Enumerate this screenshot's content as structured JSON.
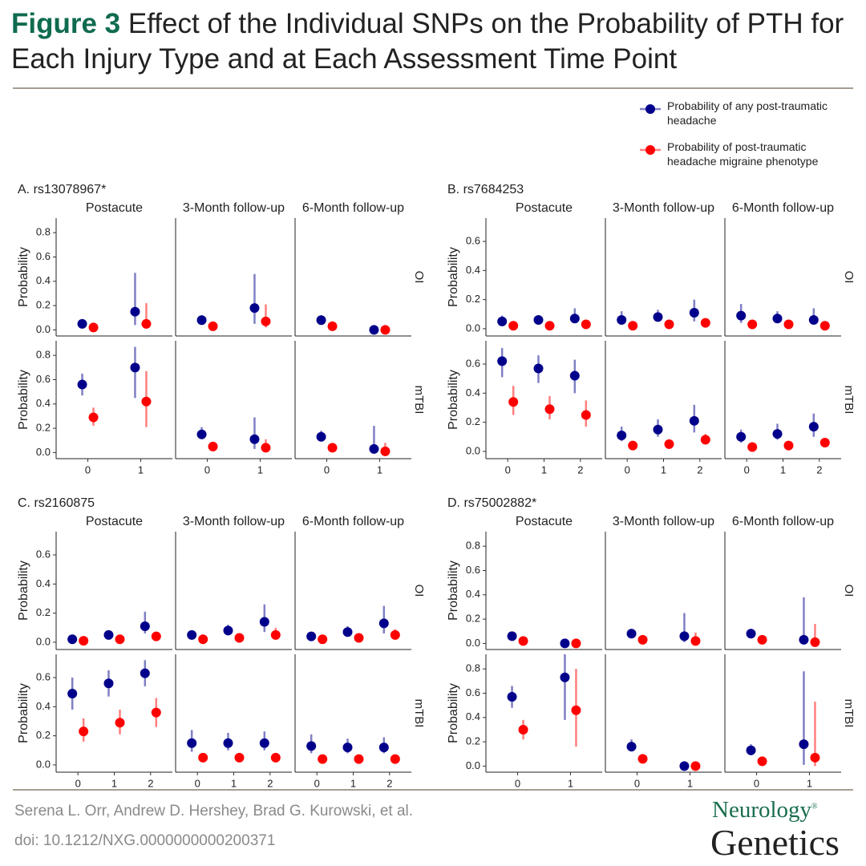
{
  "header": {
    "label": "Figure 3",
    "title": "Effect of the Individual SNPs on the Probability of PTH for Each Injury Type and at Each Assessment Time Point"
  },
  "chart_data": [
    {
      "type": "pointrange",
      "title": "A. rs13078967*",
      "columns": [
        "Postacute",
        "3-Month follow-up",
        "6-Month follow-up"
      ],
      "ylabel": "Probability",
      "categories": [
        "0",
        "1"
      ],
      "rows": [
        {
          "label": "OI",
          "ylim": [
            -0.05,
            0.92
          ],
          "yticks": [
            {
              "value": 0,
              "label": "0.0"
            },
            0.2,
            0.4,
            0.6,
            0.8
          ]
        },
        {
          "label": "mTBI",
          "ylim": [
            -0.05,
            0.92
          ],
          "yticks": [
            {
              "value": 0,
              "label": "0.0"
            },
            0.2,
            0.4,
            0.6,
            0.8
          ]
        }
      ],
      "series": [
        {
          "name": "Probability of any post-traumatic headache",
          "color": "#00008b",
          "values": [
            [
              0.05,
              0.15
            ],
            [
              0.08,
              0.18
            ],
            [
              0.08,
              0.0
            ],
            [
              0.56,
              0.7
            ],
            [
              0.15,
              0.11
            ],
            [
              0.13,
              0.03
            ]
          ],
          "low": [
            [
              0.03,
              0.04
            ],
            [
              0.05,
              0.05
            ],
            [
              0.05,
              0.0
            ],
            [
              0.47,
              0.45
            ],
            [
              0.11,
              0.03
            ],
            [
              0.09,
              0.0
            ]
          ],
          "high": [
            [
              0.07,
              0.47
            ],
            [
              0.12,
              0.46
            ],
            [
              0.12,
              0.01
            ],
            [
              0.65,
              0.87
            ],
            [
              0.21,
              0.29
            ],
            [
              0.18,
              0.22
            ]
          ]
        },
        {
          "name": "Probability of post-traumatic headache migraine phenotype",
          "color": "#ff0000",
          "values": [
            [
              0.02,
              0.05
            ],
            [
              0.03,
              0.07
            ],
            [
              0.03,
              0.0
            ],
            [
              0.29,
              0.42
            ],
            [
              0.05,
              0.04
            ],
            [
              0.04,
              0.01
            ]
          ],
          "low": [
            [
              0.01,
              0.01
            ],
            [
              0.02,
              0.02
            ],
            [
              0.02,
              0.0
            ],
            [
              0.22,
              0.21
            ],
            [
              0.04,
              0.01
            ],
            [
              0.03,
              0.0
            ]
          ],
          "high": [
            [
              0.03,
              0.22
            ],
            [
              0.04,
              0.21
            ],
            [
              0.04,
              0.01
            ],
            [
              0.37,
              0.67
            ],
            [
              0.07,
              0.11
            ],
            [
              0.06,
              0.08
            ]
          ]
        }
      ]
    },
    {
      "type": "pointrange",
      "title": "B. rs7684253",
      "columns": [
        "Postacute",
        "3-Month follow-up",
        "6-Month follow-up"
      ],
      "ylabel": "Probability",
      "categories": [
        "0",
        "1",
        "2"
      ],
      "rows": [
        {
          "label": "OI",
          "ylim": [
            -0.05,
            0.76
          ],
          "yticks": [
            {
              "value": 0,
              "label": "0.0"
            },
            0.2,
            0.4,
            0.6
          ]
        },
        {
          "label": "mTBI",
          "ylim": [
            -0.05,
            0.76
          ],
          "yticks": [
            {
              "value": 0,
              "label": "0.0"
            },
            0.2,
            0.4,
            0.6
          ]
        }
      ],
      "series": [
        {
          "color": "#00008b",
          "values": [
            [
              0.05,
              0.06,
              0.07
            ],
            [
              0.06,
              0.08,
              0.11
            ],
            [
              0.09,
              0.07,
              0.06
            ],
            [
              0.62,
              0.57,
              0.52
            ],
            [
              0.11,
              0.15,
              0.21
            ],
            [
              0.1,
              0.12,
              0.17
            ]
          ],
          "low": [
            [
              0.02,
              0.03,
              0.04
            ],
            [
              0.03,
              0.05,
              0.05
            ],
            [
              0.04,
              0.04,
              0.03
            ],
            [
              0.51,
              0.47,
              0.4
            ],
            [
              0.07,
              0.1,
              0.13
            ],
            [
              0.06,
              0.08,
              0.1
            ]
          ],
          "high": [
            [
              0.09,
              0.09,
              0.14
            ],
            [
              0.12,
              0.13,
              0.2
            ],
            [
              0.17,
              0.12,
              0.14
            ],
            [
              0.71,
              0.66,
              0.63
            ],
            [
              0.17,
              0.22,
              0.32
            ],
            [
              0.15,
              0.19,
              0.26
            ]
          ]
        },
        {
          "color": "#ff0000",
          "values": [
            [
              0.02,
              0.02,
              0.03
            ],
            [
              0.02,
              0.03,
              0.04
            ],
            [
              0.03,
              0.03,
              0.02
            ],
            [
              0.34,
              0.29,
              0.25
            ],
            [
              0.04,
              0.05,
              0.08
            ],
            [
              0.03,
              0.04,
              0.06
            ]
          ],
          "low": [
            [
              0.01,
              0.01,
              0.01
            ],
            [
              0.01,
              0.02,
              0.02
            ],
            [
              0.01,
              0.02,
              0.01
            ],
            [
              0.25,
              0.22,
              0.17
            ],
            [
              0.02,
              0.04,
              0.05
            ],
            [
              0.02,
              0.03,
              0.04
            ]
          ],
          "high": [
            [
              0.03,
              0.03,
              0.04
            ],
            [
              0.04,
              0.04,
              0.07
            ],
            [
              0.05,
              0.04,
              0.04
            ],
            [
              0.45,
              0.38,
              0.35
            ],
            [
              0.05,
              0.07,
              0.12
            ],
            [
              0.05,
              0.06,
              0.09
            ]
          ]
        }
      ]
    },
    {
      "type": "pointrange",
      "title": "C. rs2160875",
      "columns": [
        "Postacute",
        "3-Month follow-up",
        "6-Month follow-up"
      ],
      "ylabel": "Probability",
      "categories": [
        "0",
        "1",
        "2"
      ],
      "rows": [
        {
          "label": "OI",
          "ylim": [
            -0.05,
            0.76
          ],
          "yticks": [
            {
              "value": 0,
              "label": "0.0"
            },
            0.2,
            0.4,
            0.6
          ]
        },
        {
          "label": "mTBI",
          "ylim": [
            -0.05,
            0.76
          ],
          "yticks": [
            {
              "value": 0,
              "label": "0.0"
            },
            0.2,
            0.4,
            0.6
          ]
        }
      ],
      "series": [
        {
          "color": "#00008b",
          "values": [
            [
              0.02,
              0.05,
              0.11
            ],
            [
              0.05,
              0.08,
              0.14
            ],
            [
              0.04,
              0.07,
              0.13
            ],
            [
              0.49,
              0.56,
              0.63
            ],
            [
              0.15,
              0.15,
              0.15
            ],
            [
              0.13,
              0.12,
              0.12
            ]
          ],
          "low": [
            [
              0.01,
              0.03,
              0.06
            ],
            [
              0.03,
              0.05,
              0.07
            ],
            [
              0.02,
              0.05,
              0.06
            ],
            [
              0.38,
              0.47,
              0.54
            ],
            [
              0.09,
              0.1,
              0.1
            ],
            [
              0.08,
              0.08,
              0.08
            ]
          ],
          "high": [
            [
              0.04,
              0.08,
              0.21
            ],
            [
              0.08,
              0.12,
              0.26
            ],
            [
              0.07,
              0.11,
              0.25
            ],
            [
              0.6,
              0.65,
              0.72
            ],
            [
              0.24,
              0.22,
              0.23
            ],
            [
              0.21,
              0.18,
              0.19
            ]
          ]
        },
        {
          "color": "#ff0000",
          "values": [
            [
              0.01,
              0.02,
              0.04
            ],
            [
              0.02,
              0.03,
              0.05
            ],
            [
              0.02,
              0.03,
              0.05
            ],
            [
              0.23,
              0.29,
              0.36
            ],
            [
              0.05,
              0.05,
              0.05
            ],
            [
              0.04,
              0.04,
              0.04
            ]
          ],
          "low": [
            [
              0.01,
              0.01,
              0.02
            ],
            [
              0.01,
              0.02,
              0.02
            ],
            [
              0.01,
              0.02,
              0.02
            ],
            [
              0.16,
              0.21,
              0.26
            ],
            [
              0.04,
              0.04,
              0.04
            ],
            [
              0.03,
              0.03,
              0.03
            ]
          ],
          "high": [
            [
              0.02,
              0.03,
              0.07
            ],
            [
              0.03,
              0.04,
              0.1
            ],
            [
              0.03,
              0.04,
              0.09
            ],
            [
              0.32,
              0.38,
              0.46
            ],
            [
              0.08,
              0.07,
              0.07
            ],
            [
              0.06,
              0.06,
              0.06
            ]
          ]
        }
      ]
    },
    {
      "type": "pointrange",
      "title": "D. rs75002882*",
      "columns": [
        "Postacute",
        "3-Month follow-up",
        "6-Month follow-up"
      ],
      "ylabel": "Probability",
      "categories": [
        "0",
        "1"
      ],
      "rows": [
        {
          "label": "OI",
          "ylim": [
            -0.05,
            0.92
          ],
          "yticks": [
            {
              "value": 0,
              "label": "0.0"
            },
            0.2,
            0.4,
            0.6,
            0.8
          ]
        },
        {
          "label": "mTBI",
          "ylim": [
            -0.05,
            0.92
          ],
          "yticks": [
            {
              "value": 0,
              "label": "0.0"
            },
            0.2,
            0.4,
            0.6,
            0.8
          ]
        }
      ],
      "series": [
        {
          "color": "#00008b",
          "values": [
            [
              0.06,
              0.0
            ],
            [
              0.08,
              0.06
            ],
            [
              0.08,
              0.03
            ],
            [
              0.57,
              0.73
            ],
            [
              0.16,
              0.0
            ],
            [
              0.13,
              0.18
            ]
          ],
          "low": [
            [
              0.04,
              0.0
            ],
            [
              0.05,
              0.01
            ],
            [
              0.05,
              0.0
            ],
            [
              0.48,
              0.38
            ],
            [
              0.12,
              0.0
            ],
            [
              0.09,
              0.01
            ]
          ],
          "high": [
            [
              0.09,
              0.01
            ],
            [
              0.12,
              0.25
            ],
            [
              0.12,
              0.38
            ],
            [
              0.66,
              0.92
            ],
            [
              0.22,
              0.01
            ],
            [
              0.18,
              0.78
            ]
          ]
        },
        {
          "color": "#ff0000",
          "values": [
            [
              0.02,
              0.0
            ],
            [
              0.03,
              0.02
            ],
            [
              0.03,
              0.01
            ],
            [
              0.3,
              0.46
            ],
            [
              0.06,
              0.0
            ],
            [
              0.04,
              0.07
            ]
          ],
          "low": [
            [
              0.01,
              0.0
            ],
            [
              0.02,
              0.01
            ],
            [
              0.02,
              0.0
            ],
            [
              0.22,
              0.16
            ],
            [
              0.04,
              0.0
            ],
            [
              0.03,
              0.0
            ]
          ],
          "high": [
            [
              0.03,
              0.01
            ],
            [
              0.04,
              0.09
            ],
            [
              0.04,
              0.16
            ],
            [
              0.38,
              0.8
            ],
            [
              0.07,
              0.01
            ],
            [
              0.06,
              0.53
            ]
          ]
        }
      ]
    }
  ],
  "footer": {
    "authors": "Serena L. Orr, Andrew D. Hershey, Brad G. Kurowski, et al.",
    "doi": "doi: 10.1212/NXG.0000000000200371",
    "logo_top": "Neurology",
    "logo_mark": "®",
    "logo_bottom": "Genetics"
  }
}
